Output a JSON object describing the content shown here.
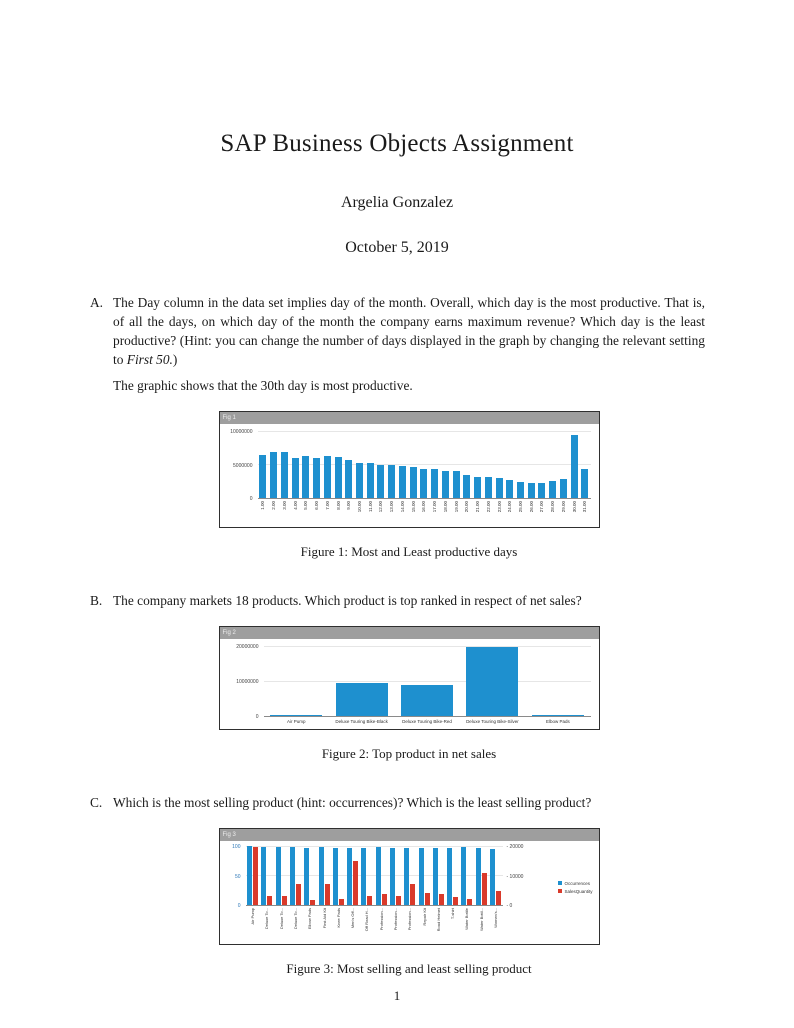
{
  "document": {
    "title": "SAP Business Objects Assignment",
    "author": "Argelia Gonzalez",
    "date": "October 5, 2019",
    "page_number": "1"
  },
  "questions": {
    "a": {
      "label": "A.",
      "text": "The Day column in the data set implies day of the month. Overall, which day is the most productive. That is, of all the days, on which day of the month the company earns maximum revenue? Which day is the least productive? (Hint: you can change the number of days displayed in the graph by changing the relevant setting to ",
      "text_italic": "First 50.",
      "text_suffix": ")",
      "answer": "The graphic shows that the 30th day is most productive."
    },
    "b": {
      "label": "B.",
      "text": "The company markets 18 products. Which product is top ranked in respect of net sales?"
    },
    "c": {
      "label": "C.",
      "text": "Which is the most selling product (hint: occurrences)? Which is the least selling product?"
    }
  },
  "figures": [
    {
      "header": "Fig 1",
      "caption": "Figure 1: Most and Least productive days"
    },
    {
      "header": "Fig 2",
      "caption": "Figure 2: Top product in net sales"
    },
    {
      "header": "Fig 3",
      "caption": "Figure 3: Most selling and least selling product"
    }
  ],
  "chart_data": [
    {
      "type": "bar",
      "title": "Revenue by day of month",
      "categories": [
        "1.00",
        "2.00",
        "3.00",
        "4.00",
        "5.00",
        "6.00",
        "7.00",
        "8.00",
        "9.00",
        "10.00",
        "11.00",
        "12.00",
        "13.00",
        "14.00",
        "15.00",
        "16.00",
        "17.00",
        "18.00",
        "19.00",
        "20.00",
        "21.00",
        "22.00",
        "23.00",
        "24.00",
        "25.00",
        "26.00",
        "27.00",
        "28.00",
        "29.00",
        "30.00",
        "31.00"
      ],
      "values": [
        6400000,
        6900000,
        6900000,
        6000000,
        6200000,
        6000000,
        6200000,
        6100000,
        5600000,
        5200000,
        5300000,
        5000000,
        5000000,
        4800000,
        4700000,
        4300000,
        4400000,
        4000000,
        4000000,
        3500000,
        3200000,
        3100000,
        3000000,
        2700000,
        2400000,
        2200000,
        2300000,
        2600000,
        2900000,
        9400000,
        4400000
      ],
      "ylim": [
        0,
        10000000
      ],
      "yticks": [
        0,
        5000000,
        10000000
      ],
      "bar_color": "#1e90cf",
      "grid": true,
      "legend": "none"
    },
    {
      "type": "bar",
      "title": "Net sales by product",
      "categories": [
        "Air Pump",
        "Deluxe Touring Bike-Black",
        "Deluxe Touring Bike-Red",
        "Deluxe Touring Bike-Silver",
        "Elbow Pads"
      ],
      "values": [
        250000,
        9300000,
        8800000,
        19600000,
        180000
      ],
      "ylim": [
        0,
        20000000
      ],
      "yticks": [
        0,
        10000000,
        20000000
      ],
      "bar_color": "#1e90cf",
      "grid": true,
      "legend": "none"
    },
    {
      "type": "bar",
      "title": "Occurrences and SalesQuantity by product",
      "categories": [
        "Air Pump",
        "Deluxe To...",
        "Deluxe To...",
        "Deluxe To...",
        "Elbow Pads",
        "First Aid Kit",
        "Knee Pads",
        "Men's Off...",
        "Off Road H...",
        "Profession...",
        "Profession...",
        "Profession...",
        "Repair Kit",
        "Road Helmet",
        "T-shirt",
        "Water Bottle",
        "Water Bottl...",
        "Women's..."
      ],
      "series": [
        {
          "name": "Occurrences",
          "axis": "left",
          "color": "#1e90cf",
          "values": [
            100,
            98,
            98,
            98,
            97,
            98,
            97,
            96,
            97,
            98,
            97,
            97,
            97,
            97,
            96,
            98,
            97,
            95
          ]
        },
        {
          "name": "SalesQuantity",
          "axis": "right",
          "color": "#d93a2b",
          "values": [
            19800,
            3200,
            3000,
            7200,
            1800,
            7000,
            2200,
            15000,
            3200,
            3800,
            3200,
            7000,
            4200,
            3600,
            2600,
            2200,
            11000,
            4600
          ]
        }
      ],
      "left_ylim": [
        0,
        100
      ],
      "left_yticks": [
        0,
        50,
        100
      ],
      "right_ylim": [
        0,
        20000
      ],
      "right_yticks": [
        0,
        10000,
        20000
      ],
      "left_axis_color": "#2e78b8",
      "grid": true,
      "legend": "right"
    }
  ]
}
